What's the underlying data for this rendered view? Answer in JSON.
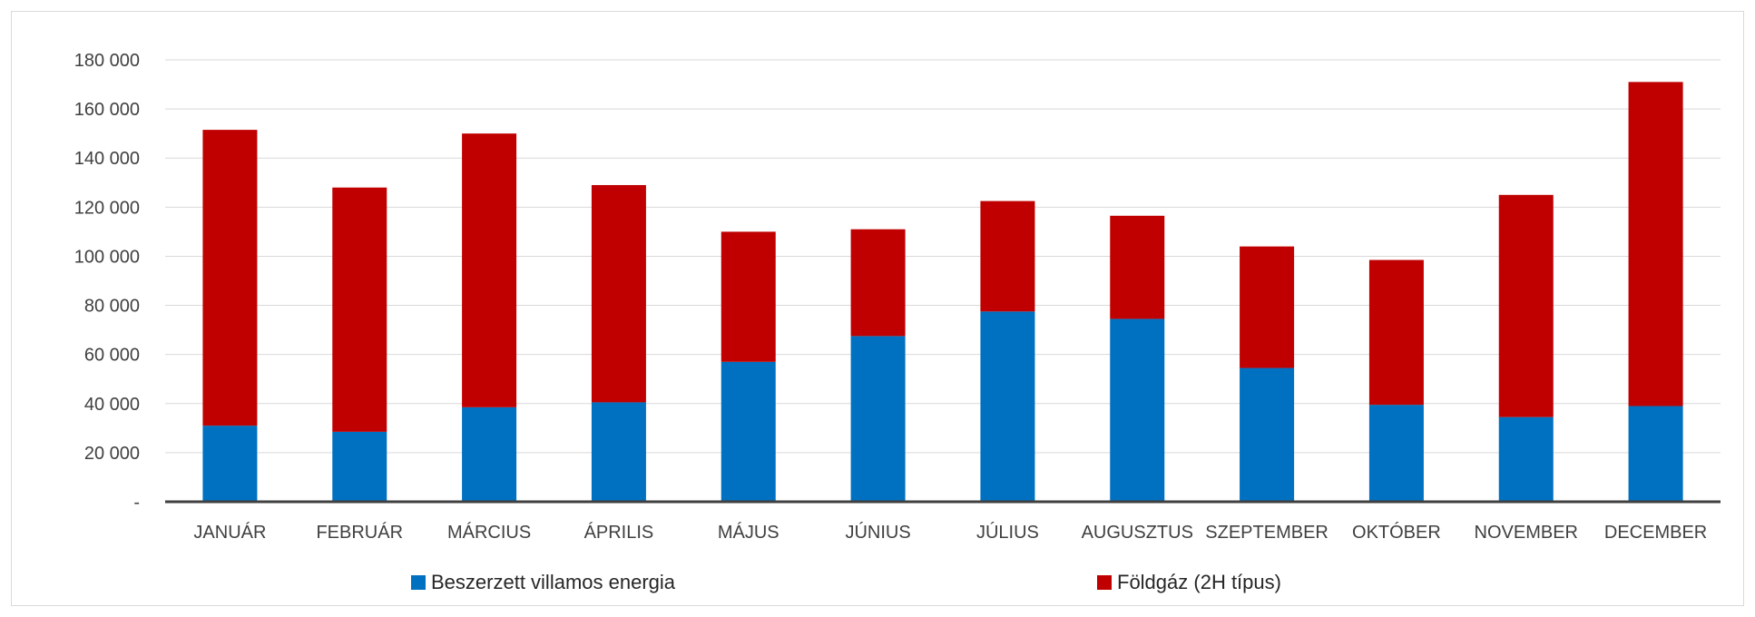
{
  "chart_data": {
    "type": "bar",
    "stacked": true,
    "categories": [
      "JANUÁR",
      "FEBRUÁR",
      "MÁRCIUS",
      "ÁPRILIS",
      "MÁJUS",
      "JÚNIUS",
      "JÚLIUS",
      "AUGUSZTUS",
      "SZEPTEMBER",
      "OKTÓBER",
      "NOVEMBER",
      "DECEMBER"
    ],
    "series": [
      {
        "name": "Beszerzett villamos energia",
        "color": "#0070C0",
        "values": [
          31000,
          28500,
          38500,
          40500,
          57000,
          67500,
          77500,
          74500,
          54500,
          39500,
          34500,
          39000
        ]
      },
      {
        "name": "Földgáz (2H típus)",
        "color": "#C00000",
        "values": [
          120500,
          99500,
          111500,
          88500,
          53000,
          43500,
          45000,
          42000,
          49500,
          59000,
          90500,
          132000
        ]
      }
    ],
    "y_ticks": [
      "-",
      "20 000",
      "40 000",
      "60 000",
      "80 000",
      "100 000",
      "120 000",
      "140 000",
      "160 000",
      "180 000"
    ],
    "ylim": [
      0,
      180000
    ],
    "grid": true,
    "legend_position": "bottom"
  }
}
